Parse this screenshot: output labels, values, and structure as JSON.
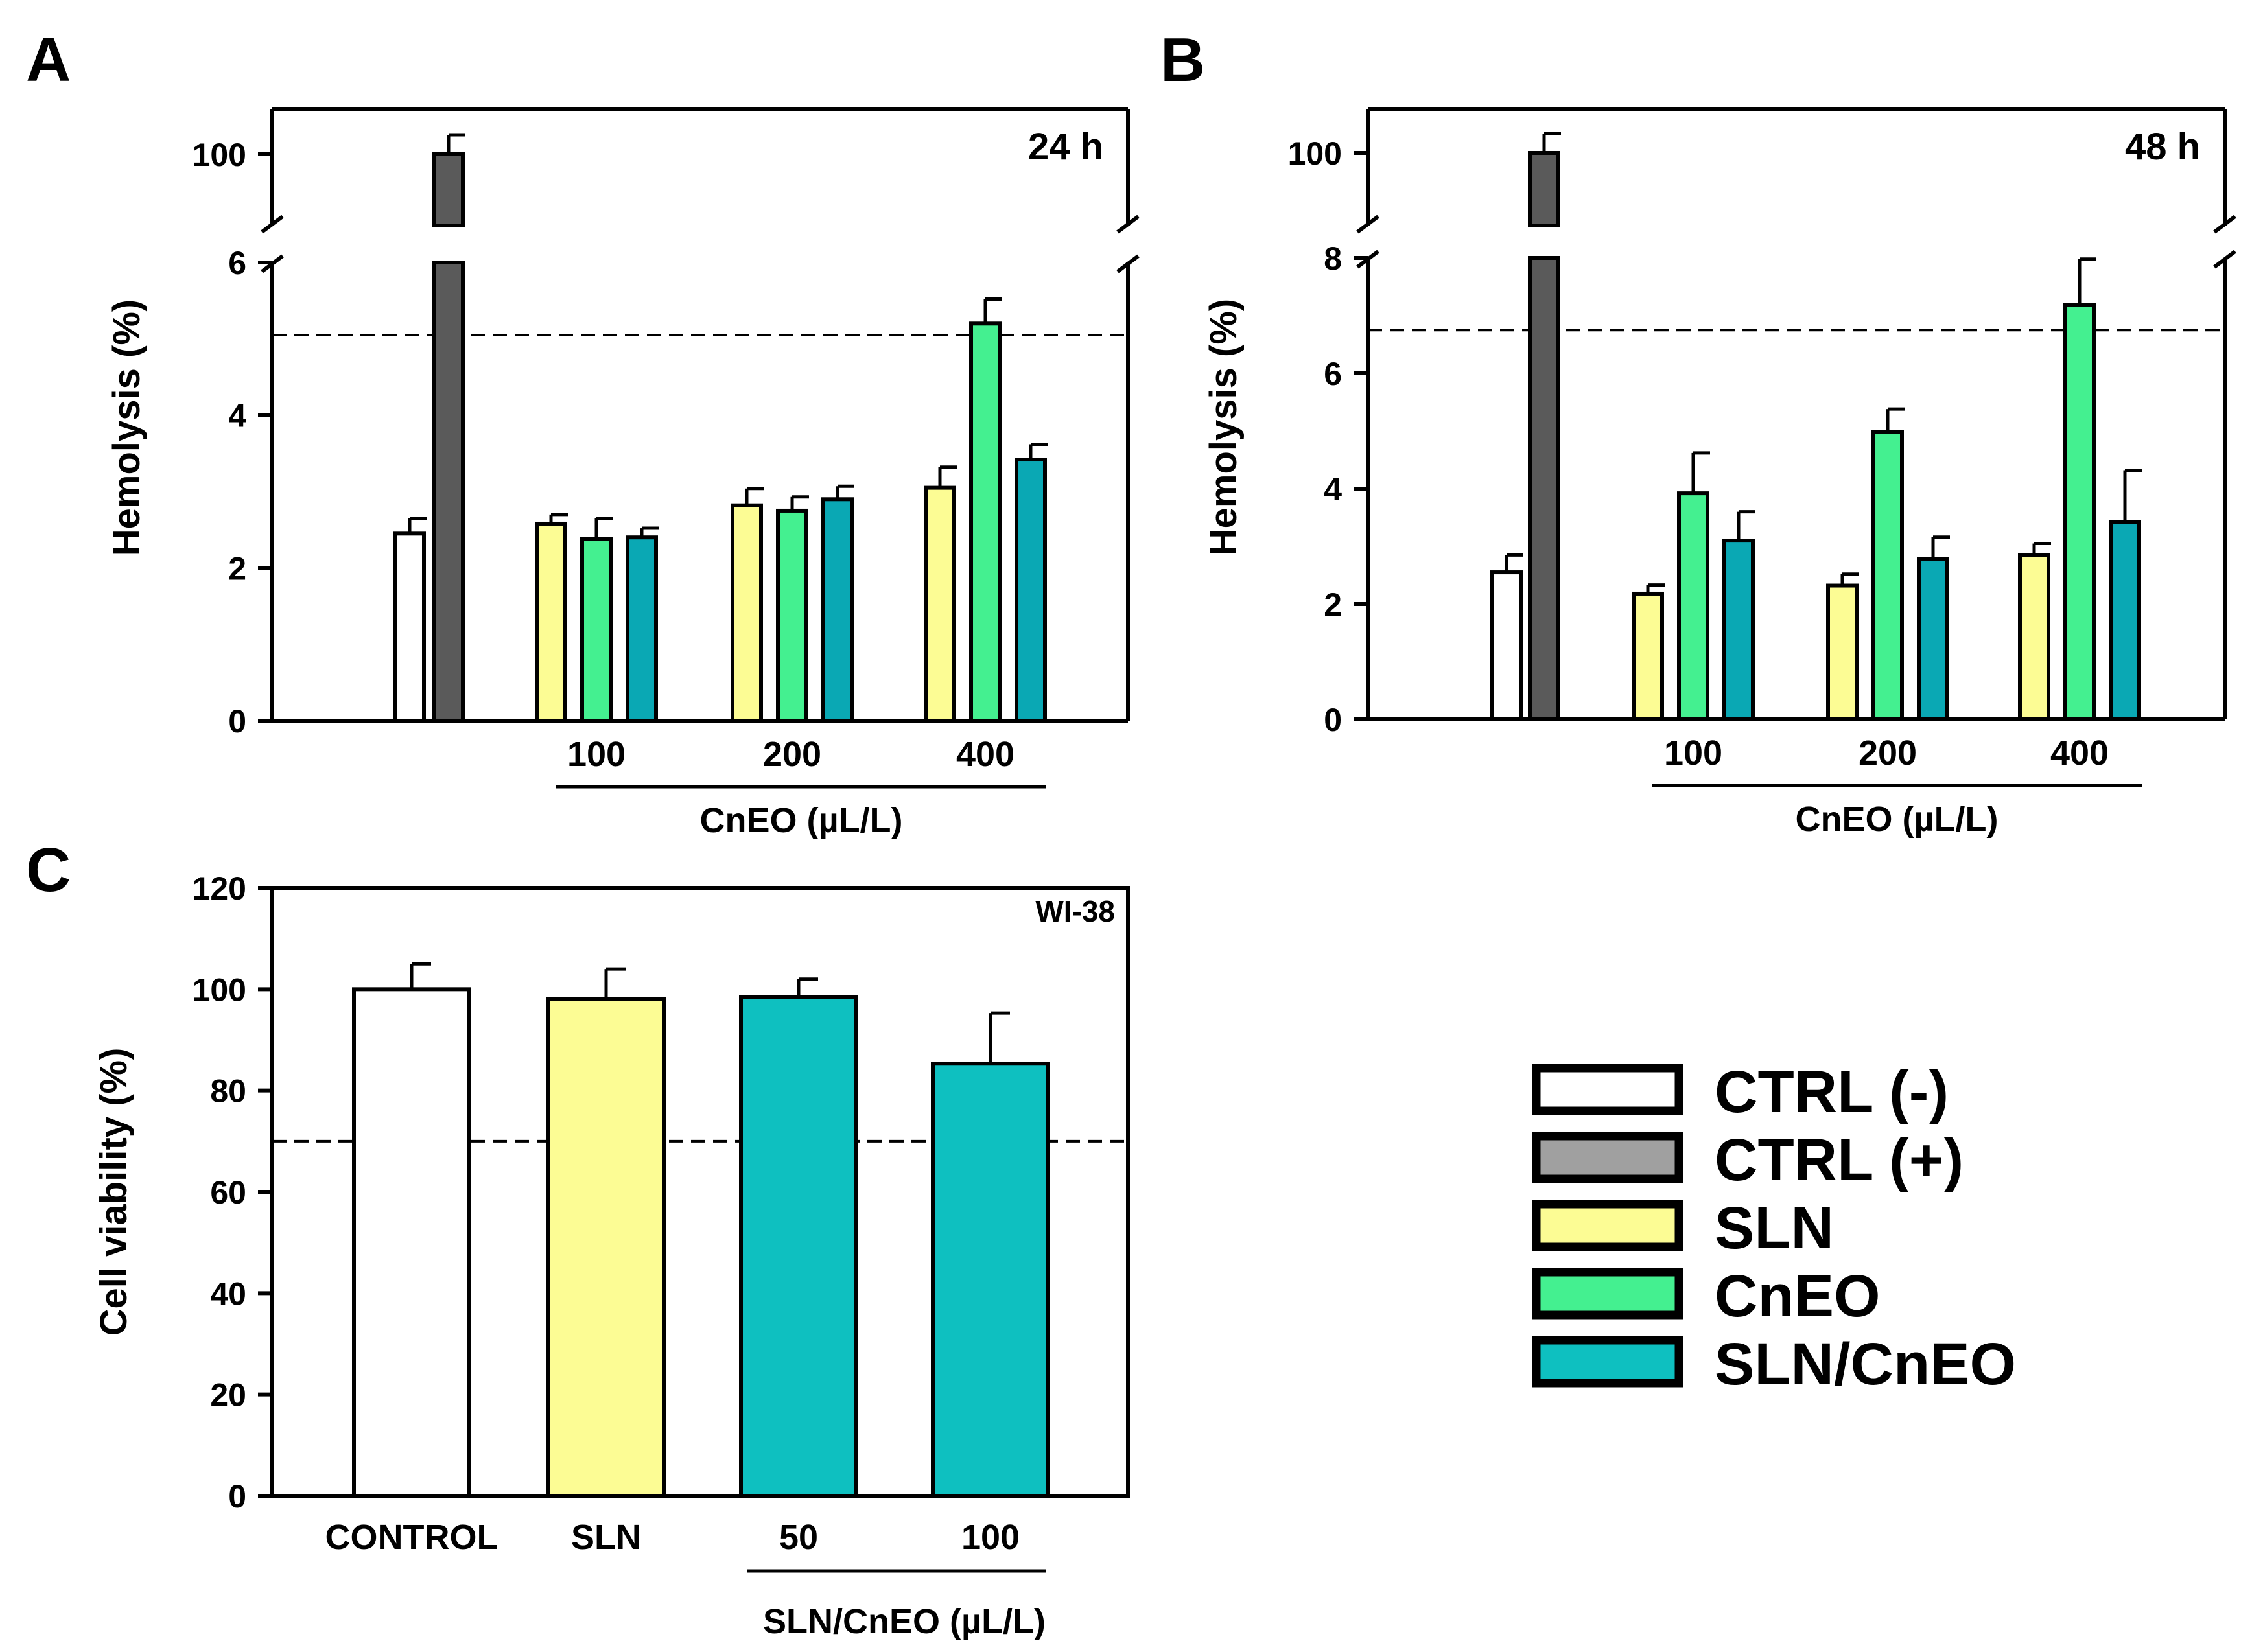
{
  "colors": {
    "ctrl_neg": "#ffffff",
    "ctrl_pos": "#5a5a5a",
    "ctrl_pos_legend": "#a0a0a0",
    "sln": "#fcfc94",
    "cneo": "#44f090",
    "sln_cneo": "#0ec0c0",
    "sln_cneo_hemolysis": "#0aa8b4"
  },
  "chart_data": [
    {
      "id": "A",
      "type": "bar",
      "panel_label": "A",
      "corner_label": "24 h",
      "ylabel": "Hemolysis (%)",
      "xlabel": "CnEO (µL/L)",
      "categories": [
        "100",
        "200",
        "400"
      ],
      "ylim": [
        0,
        6
      ],
      "yticks": [
        "0",
        "2",
        "4",
        "6"
      ],
      "broken_axis": {
        "upper_tick": "100",
        "upper_value": 100
      },
      "threshold_line": 5.05,
      "controls": [
        {
          "name": "CTRL (-)",
          "value": 2.45,
          "error": 0.2
        },
        {
          "name": "CTRL (+)",
          "value": 100,
          "error": 3
        }
      ],
      "series": [
        {
          "name": "SLN",
          "values": [
            2.58,
            2.82,
            3.05
          ],
          "errors": [
            0.12,
            0.22,
            0.27
          ]
        },
        {
          "name": "CnEO",
          "values": [
            2.38,
            2.75,
            5.2
          ],
          "errors": [
            0.27,
            0.18,
            0.32
          ]
        },
        {
          "name": "SLN/CnEO",
          "values": [
            2.4,
            2.9,
            3.42
          ],
          "errors": [
            0.12,
            0.17,
            0.2
          ]
        }
      ]
    },
    {
      "id": "B",
      "type": "bar",
      "panel_label": "B",
      "corner_label": "48 h",
      "ylabel": "Hemolysis (%)",
      "xlabel": "CnEO (µL/L)",
      "categories": [
        "100",
        "200",
        "400"
      ],
      "ylim": [
        0,
        8
      ],
      "yticks": [
        "0",
        "2",
        "4",
        "6",
        "8"
      ],
      "broken_axis": {
        "upper_tick": "100",
        "upper_value": 100
      },
      "threshold_line": 6.75,
      "controls": [
        {
          "name": "CTRL (-)",
          "value": 2.55,
          "error": 0.3
        },
        {
          "name": "CTRL (+)",
          "value": 100,
          "error": 3
        }
      ],
      "series": [
        {
          "name": "SLN",
          "values": [
            2.18,
            2.32,
            2.85
          ],
          "errors": [
            0.15,
            0.2,
            0.2
          ]
        },
        {
          "name": "CnEO",
          "values": [
            3.92,
            4.98,
            7.18
          ],
          "errors": [
            0.7,
            0.4,
            0.8
          ]
        },
        {
          "name": "SLN/CnEO",
          "values": [
            3.1,
            2.78,
            3.42
          ],
          "errors": [
            0.5,
            0.38,
            0.9
          ]
        }
      ]
    },
    {
      "id": "C",
      "type": "bar",
      "panel_label": "C",
      "corner_label": "WI-38",
      "ylabel": "Cell viability (%)",
      "xlabel": "SLN/CnEO (µL/L)",
      "categories": [
        "CONTROL",
        "SLN",
        "50",
        "100"
      ],
      "values": [
        100,
        98,
        98.5,
        85.3
      ],
      "errors": [
        5,
        6,
        3.5,
        10
      ],
      "bar_series": [
        "CTRL (-)",
        "SLN",
        "SLN/CnEO",
        "SLN/CnEO"
      ],
      "ylim": [
        0,
        120
      ],
      "yticks": [
        "0",
        "20",
        "40",
        "60",
        "80",
        "100",
        "120"
      ],
      "threshold_line": 70
    }
  ],
  "legend": {
    "entries": [
      "CTRL (-)",
      "CTRL (+)",
      "SLN",
      "CnEO",
      "SLN/CnEO"
    ]
  }
}
